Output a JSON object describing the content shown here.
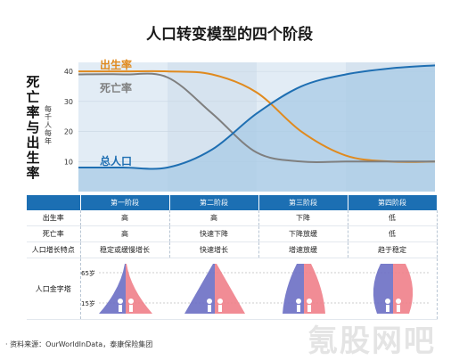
{
  "title": "人口转变模型的四个阶段",
  "y_axis": {
    "label_chars": [
      "死",
      "亡",
      "率",
      "与",
      "出",
      "生",
      "率"
    ],
    "unit_chars": [
      "每",
      "千",
      "人",
      "每",
      "年"
    ]
  },
  "chart_data": {
    "type": "line",
    "ylim": [
      0,
      43
    ],
    "yticks": [
      10,
      20,
      30,
      40
    ],
    "x": [
      0,
      5,
      10,
      15,
      20,
      25,
      30,
      35,
      40
    ],
    "series": [
      {
        "name": "出生率",
        "color": "#e08a1e",
        "values": [
          40,
          40,
          40,
          39,
          33,
          20,
          12,
          10,
          10
        ]
      },
      {
        "name": "死亡率",
        "color": "#7f7f7f",
        "values": [
          39,
          39,
          38,
          26,
          13,
          10,
          10,
          10,
          10
        ]
      },
      {
        "name": "总人口",
        "color": "#1f6fb2",
        "values": [
          8,
          8,
          8,
          14,
          26,
          35,
          39,
          41,
          42
        ]
      }
    ],
    "stage_shading": [
      "#e2ecf5",
      "#d6e3ef",
      "#e2ecf5",
      "#d6e3ef"
    ],
    "grid": true
  },
  "table": {
    "headers": [
      "",
      "第一阶段",
      "第二阶段",
      "第三阶段",
      "第四阶段"
    ],
    "rows": [
      [
        "出生率",
        "高",
        "高",
        "下降",
        "低"
      ],
      [
        "死亡率",
        "高",
        "快速下降",
        "下降放缓",
        "低"
      ],
      [
        "人口增长特点",
        "稳定或缓慢增长",
        "快速增长",
        "增速放缓",
        "趋于稳定"
      ]
    ],
    "pyramid_row_label": "人口金字塔",
    "age_labels": [
      "65岁",
      "15岁"
    ],
    "pyramid_colors": {
      "male": "#6b6fc4",
      "female": "#ef7f8a"
    }
  },
  "source": "· 资料来源：OurWorldInData，泰康保险集团",
  "watermark": "氪股网吧"
}
